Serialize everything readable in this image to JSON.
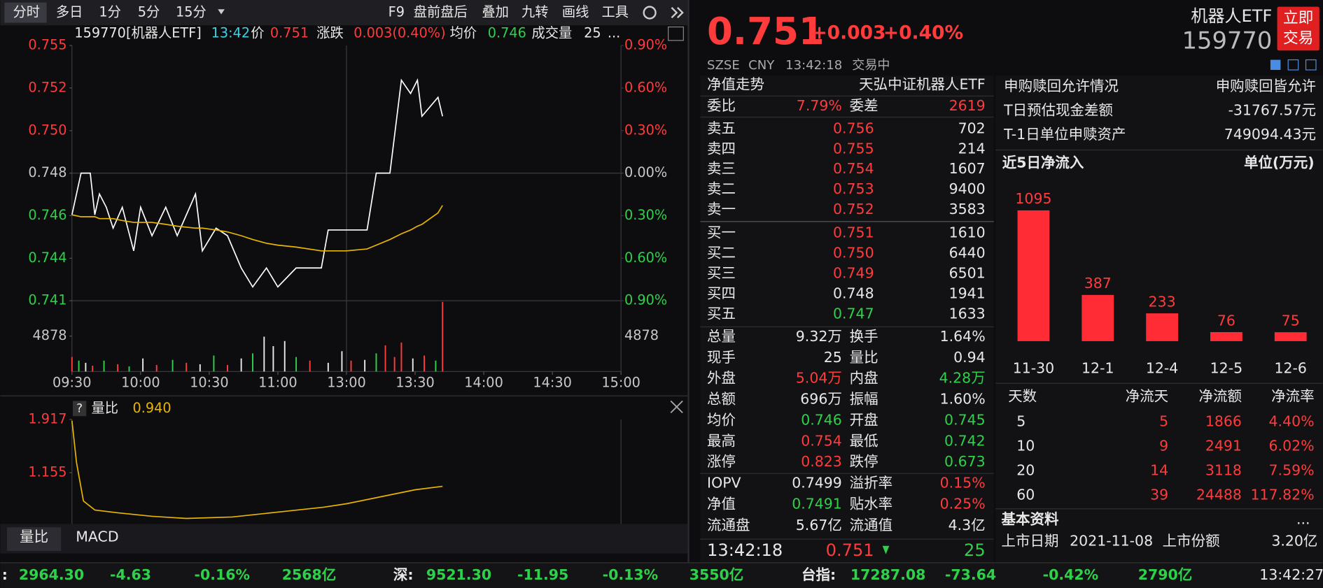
{
  "toolbar": {
    "tabs": [
      "分时",
      "多日",
      "1分",
      "5分",
      "15分"
    ],
    "tools": [
      "F9",
      "盘前盘后",
      "叠加",
      "九转",
      "画线",
      "工具"
    ]
  },
  "quote_line": {
    "code": "159770[机器人ETF]",
    "time": "13:42",
    "price_label": "价",
    "price": "0.751",
    "change_label": "涨跌",
    "change": "0.003(0.40%)",
    "avg_label": "均价",
    "avg": "0.746",
    "volume_label": "成交量",
    "volume": "25",
    "more": "..."
  },
  "intraday": {
    "type": "line",
    "x": [
      0,
      4,
      8,
      10,
      12,
      15,
      18,
      22,
      27,
      30,
      35,
      41,
      46,
      54,
      57,
      63,
      68,
      74,
      79,
      85,
      90,
      98,
      109,
      112,
      120,
      129,
      133,
      139,
      144,
      148,
      151,
      153,
      160,
      162
    ],
    "series": [
      {
        "color": "#ffffff",
        "values": [
          0.7458,
          0.748,
          0.748,
          0.7458,
          0.7469,
          0.7462,
          0.7451,
          0.7462,
          0.7439,
          0.7462,
          0.7447,
          0.7462,
          0.7447,
          0.7469,
          0.7439,
          0.7451,
          0.7447,
          0.743,
          0.742,
          0.743,
          0.742,
          0.743,
          0.743,
          0.745,
          0.745,
          0.745,
          0.748,
          0.748,
          0.7529,
          0.7522,
          0.7529,
          0.751,
          0.752,
          0.751
        ]
      },
      {
        "color": "#e8b500",
        "values": [
          0.7458,
          0.7457,
          0.7457,
          0.7457,
          0.7456,
          0.7456,
          0.7456,
          0.7455,
          0.7454,
          0.7454,
          0.7454,
          0.7453,
          0.7452,
          0.7451,
          0.7451,
          0.745,
          0.7449,
          0.7447,
          0.7445,
          0.7443,
          0.7442,
          0.7441,
          0.7439,
          0.7439,
          0.7439,
          0.744,
          0.7442,
          0.7445,
          0.7448,
          0.745,
          0.7452,
          0.7453,
          0.7459,
          0.7463
        ]
      }
    ],
    "xlim": [
      0,
      240
    ],
    "xticks": [
      {
        "value": 0,
        "label": "09:30"
      },
      {
        "value": 30,
        "label": "10:00"
      },
      {
        "value": 60,
        "label": "10:30"
      },
      {
        "value": 90,
        "label": "11:00"
      },
      {
        "value": 120,
        "label": "13:00"
      },
      {
        "value": 150,
        "label": "13:30"
      },
      {
        "value": 180,
        "label": "14:00"
      },
      {
        "value": 210,
        "label": "14:30"
      },
      {
        "value": 240,
        "label": "15:00"
      }
    ],
    "ylim": [
      0.74127,
      0.75473
    ],
    "yticks": [
      {
        "value": 0.75473,
        "label": "0.755"
      },
      {
        "value": 0.75249,
        "label": "0.752"
      },
      {
        "value": 0.75024,
        "label": "0.750"
      },
      0.748,
      {
        "value": 0.74576,
        "label": "0.746"
      },
      {
        "value": 0.74351,
        "label": "0.744"
      },
      {
        "value": 0.74127,
        "label": "0.741"
      }
    ],
    "y2lim": [
      -0.9,
      0.9
    ],
    "y2ticks": [
      {
        "value": 0.9,
        "label": "0.90%"
      },
      {
        "value": 0.6,
        "label": "0.60%"
      },
      {
        "value": 0.3,
        "label": "0.30%"
      },
      {
        "value": 0,
        "label": "0.00%"
      },
      {
        "value": -0.3,
        "label": "0.30%"
      },
      {
        "value": -0.6,
        "label": "0.60%"
      },
      {
        "value": -0.9,
        "label": "0.90%"
      }
    ]
  },
  "volume": {
    "type": "bar",
    "x": [
      0,
      3,
      6,
      9,
      14,
      20,
      25,
      31,
      37,
      44,
      50,
      56,
      62,
      68,
      74,
      79,
      84,
      88,
      93,
      98,
      104,
      112,
      118,
      122,
      128,
      133,
      137,
      141,
      144,
      149,
      154,
      159,
      162
    ],
    "values": [
      2000,
      1500,
      1200,
      800,
      1500,
      1000,
      700,
      1800,
      900,
      1600,
      1200,
      1000,
      2200,
      900,
      1800,
      2500,
      4800,
      3500,
      4200,
      2000,
      1500,
      1200,
      2800,
      1500,
      1600,
      2500,
      3600,
      2000,
      4000,
      1800,
      2200,
      1500,
      9600
    ],
    "colors": [
      "#ff3b3b",
      "#2fd04a",
      "#e8e8e8",
      "#ff3b3b",
      "#2fd04a",
      "#ff3b3b",
      "#2fd04a",
      "#e8e8e8",
      "#ff3b3b",
      "#2fd04a",
      "#ff3b3b",
      "#e8e8e8",
      "#2fd04a",
      "#ff3b3b",
      "#e8e8e8",
      "#2fd04a",
      "#e8e8e8",
      "#e8e8e8",
      "#e8e8e8",
      "#2fd04a",
      "#ff3b3b",
      "#e8e8e8",
      "#e8e8e8",
      "#ff3b3b",
      "#e8e8e8",
      "#2fd04a",
      "#ff3b3b",
      "#ff3b3b",
      "#ff3b3b",
      "#e8e8e8",
      "#ff3b3b",
      "#2fd04a",
      "#ff3b3b"
    ],
    "ylim": [
      0,
      9756
    ],
    "yticks": [
      4878
    ]
  },
  "volume_ratio": {
    "type": "line",
    "help": "?",
    "label": "量比",
    "value": "0.940",
    "color": "#e8b500",
    "x": [
      0,
      2,
      5,
      10,
      20,
      35,
      50,
      70,
      90,
      110,
      120,
      135,
      150,
      162
    ],
    "values": [
      1.9,
      1.3,
      0.75,
      0.62,
      0.58,
      0.53,
      0.5,
      0.52,
      0.59,
      0.66,
      0.71,
      0.81,
      0.91,
      0.96
    ],
    "xlim": [
      0,
      240
    ],
    "ylim": [
      0.42,
      1.917
    ],
    "yticks": [
      1.917,
      1.155
    ]
  },
  "bottom_tabs": [
    "量比",
    "MACD"
  ],
  "quote": {
    "price": "0.751",
    "change": "+0.003",
    "change_pct": "+0.40%",
    "name": "机器人ETF",
    "code": "159770",
    "trade_button": [
      "立即",
      "交易"
    ],
    "exchange": "SZSE",
    "currency": "CNY",
    "time": "13:42:18",
    "status": "交易中"
  },
  "nav": {
    "label": "净值走势",
    "fund": "天弘中证机器人ETF"
  },
  "order_book": {
    "ratio_label": "委比",
    "ratio": "7.79%",
    "diff_label": "委差",
    "diff": "2619",
    "asks": [
      {
        "label": "卖五",
        "price": "0.756",
        "volume": "702",
        "color": "#ff3b3b"
      },
      {
        "label": "卖四",
        "price": "0.755",
        "volume": "214",
        "color": "#ff3b3b"
      },
      {
        "label": "卖三",
        "price": "0.754",
        "volume": "1607",
        "color": "#ff3b3b"
      },
      {
        "label": "卖二",
        "price": "0.753",
        "volume": "9400",
        "color": "#ff3b3b"
      },
      {
        "label": "卖一",
        "price": "0.752",
        "volume": "3583",
        "color": "#ff3b3b"
      }
    ],
    "bids": [
      {
        "label": "买一",
        "price": "0.751",
        "volume": "1610",
        "color": "#ff3b3b"
      },
      {
        "label": "买二",
        "price": "0.750",
        "volume": "6440",
        "color": "#ff3b3b"
      },
      {
        "label": "买三",
        "price": "0.749",
        "volume": "6501",
        "color": "#ff3b3b"
      },
      {
        "label": "买四",
        "price": "0.748",
        "volume": "1941",
        "color": "#e8e8e8"
      },
      {
        "label": "买五",
        "price": "0.747",
        "volume": "1633",
        "color": "#2fd04a"
      }
    ]
  },
  "stats": {
    "rows": [
      [
        {
          "label": "总量",
          "value": "9.32万"
        },
        {
          "label": "换手",
          "value": "1.64%"
        }
      ],
      [
        {
          "label": "现手",
          "value": "25"
        },
        {
          "label": "量比",
          "value": "0.94"
        }
      ],
      [
        {
          "label": "外盘",
          "value": "5.04万",
          "color": "#ff3b3b"
        },
        {
          "label": "内盘",
          "value": "4.28万",
          "color": "#2fd04a"
        }
      ],
      [
        {
          "label": "总额",
          "value": "696万"
        },
        {
          "label": "振幅",
          "value": "1.60%"
        }
      ],
      [
        {
          "label": "均价",
          "value": "0.746",
          "color": "#2fd04a"
        },
        {
          "label": "开盘",
          "value": "0.745",
          "color": "#2fd04a"
        }
      ],
      [
        {
          "label": "最高",
          "value": "0.754",
          "color": "#ff3b3b"
        },
        {
          "label": "最低",
          "value": "0.742",
          "color": "#2fd04a"
        }
      ],
      [
        {
          "label": "涨停",
          "value": "0.823",
          "color": "#ff3b3b"
        },
        {
          "label": "跌停",
          "value": "0.673",
          "color": "#2fd04a"
        }
      ]
    ],
    "fund_rows": [
      [
        {
          "label": "IOPV",
          "value": "0.7499"
        },
        {
          "label": "溢折率",
          "value": "0.15%",
          "color": "#ff3b3b"
        }
      ],
      [
        {
          "label": "净值",
          "value": "0.7491",
          "color": "#2fd04a"
        },
        {
          "label": "贴水率",
          "value": "0.25%",
          "color": "#ff3b3b"
        }
      ],
      [
        {
          "label": "流通盘",
          "value": "5.67亿"
        },
        {
          "label": "流通值",
          "value": "4.3亿"
        }
      ]
    ]
  },
  "ticker": {
    "time": "13:42:18",
    "price": "0.751",
    "volume": "25"
  },
  "creation": {
    "rows": [
      [
        "申购赎回允许情况",
        "申购赎回皆允许"
      ],
      [
        "T日预估现金差额",
        "-31767.57元"
      ],
      [
        "T-1日单位申赎资产",
        "749094.43元"
      ]
    ]
  },
  "net_flow": {
    "type": "bar",
    "title": "近5日净流入",
    "unit": "单位(万元)",
    "categories": [
      "11-30",
      "12-1",
      "12-4",
      "12-5",
      "12-6"
    ],
    "values": [
      1095,
      387,
      233,
      76,
      75
    ],
    "color": "#ff2b35",
    "ylim": [
      0,
      1100
    ]
  },
  "flow_table": {
    "header": [
      "天数",
      "净流天",
      "净流额",
      "净流率"
    ],
    "rows": [
      [
        "5",
        "5",
        "1866",
        "4.40%"
      ],
      [
        "10",
        "9",
        "2491",
        "6.02%"
      ],
      [
        "20",
        "14",
        "3118",
        "7.59%"
      ],
      [
        "60",
        "39",
        "24488",
        "117.82%"
      ]
    ]
  },
  "basic_info": {
    "title": "基本资料",
    "more": "...",
    "rows": [
      [
        "上市日期",
        "2021-11-08",
        "上市份额",
        "3.20亿"
      ]
    ]
  },
  "index_bar": {
    "items": [
      {
        "label": ":",
        "values": [
          "2964.30",
          "-4.63",
          "-0.16%",
          "2568亿"
        ]
      },
      {
        "label": "深:",
        "values": [
          "9521.30",
          "-11.95",
          "-0.13%",
          "3550亿"
        ]
      },
      {
        "label": "台指:",
        "values": [
          "17287.08",
          "-73.64",
          "-0.42%",
          "2790亿"
        ]
      }
    ],
    "clock": "13:42:27"
  }
}
